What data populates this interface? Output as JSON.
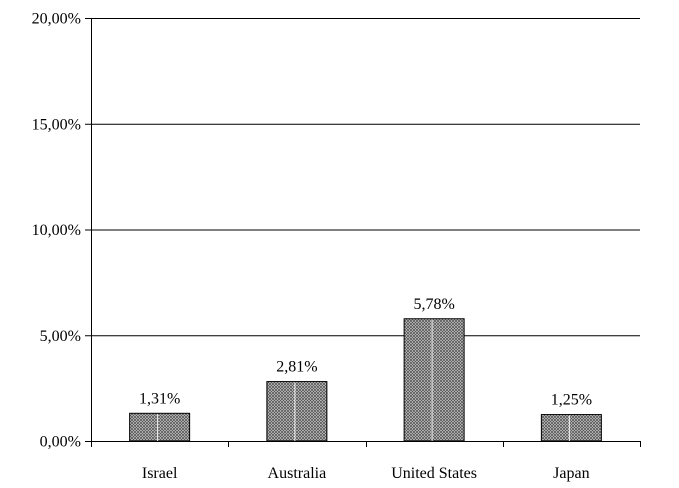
{
  "chart_data": {
    "type": "bar",
    "categories": [
      "Israel",
      "Australia",
      "United States",
      "Japan"
    ],
    "values": [
      1.31,
      2.81,
      5.78,
      1.25
    ],
    "data_labels": [
      "1,31%",
      "2,81%",
      "5,78%",
      "1,25%"
    ],
    "ylim": [
      0,
      20
    ],
    "yticks": [
      0,
      5,
      10,
      15,
      20
    ],
    "ytick_labels": [
      "0,00%",
      "5,00%",
      "10,00%",
      "15,00%",
      "20,00%"
    ],
    "title": "",
    "xlabel": "",
    "ylabel": "",
    "grid": true,
    "legend": "none",
    "bar_pattern": "crosshatch",
    "colors": {
      "bar_fill": "#8a8a8a",
      "bar_stroke": "#000000",
      "gridline": "#000000",
      "axis": "#000000"
    }
  }
}
